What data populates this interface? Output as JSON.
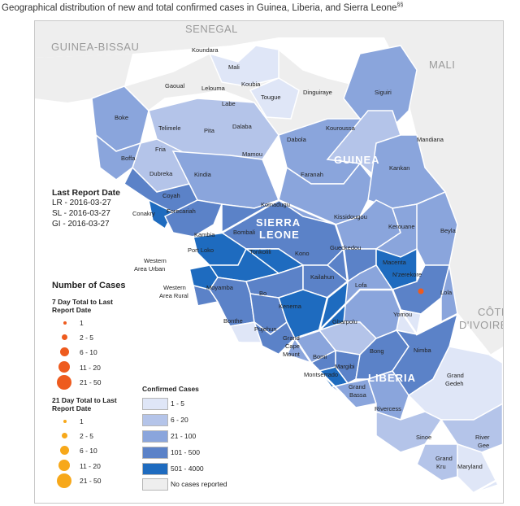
{
  "title": "Geographical distribution of new and total confirmed cases in Guinea, Liberia, and Sierra Leone",
  "title_sup": "§§",
  "colors": {
    "c1_5": "#dfe6f7",
    "c6_20": "#b4c4e9",
    "c21_100": "#8aa5dc",
    "c101_500": "#5b82c8",
    "c501_4000": "#1e6bbf",
    "none": "#eeeeee",
    "dot7": "#ee5b1e",
    "dot21": "#f7a81a"
  },
  "countries": {
    "senegal": "SENEGAL",
    "guinea_bissau": "GUINEA-BISSAU",
    "mali": "MALI",
    "cote_divoire_1": "CÔTE",
    "cote_divoire_2": "D'IVOIRE",
    "guinea": "GUINEA",
    "sierra_leone_1": "SIERRA",
    "sierra_leone_2": "LEONE",
    "liberia": "LIBERIA"
  },
  "districts": {
    "koundara": "Koundara",
    "mali": "Mali",
    "gaoual": "Gaoual",
    "lelouma": "Lelouma",
    "koubia": "Koubia",
    "labe": "Labe",
    "tougue": "Tougue",
    "dinguiraye": "Dinguiraye",
    "siguiri": "Siguiri",
    "boke": "Boke",
    "telimele": "Telimele",
    "pita": "Pita",
    "dalaba": "Dalaba",
    "kouroussa": "Kouroussa",
    "mandiana": "Mandiana",
    "boffa": "Boffa",
    "fria": "Fria",
    "mamou": "Mamou",
    "dabola": "Dabola",
    "dubreka": "Dubreka",
    "kindia": "Kindia",
    "faranah": "Faranah",
    "kankan": "Kankan",
    "coyah": "Coyah",
    "conakry": "Conakry",
    "forecariah": "Forecariah",
    "koinadugu": "Koinadugu",
    "kissidougou": "Kissidougou",
    "kerouane": "Kerouane",
    "beyla": "Beyla",
    "kambia": "Kambia",
    "bombali": "Bombali",
    "port_loko": "Port Loko",
    "tonkolili": "Tonkolili",
    "kono": "Kono",
    "gueckedou": "Gueckedou",
    "macenta": "Macenta",
    "nzerekore": "N'zerekore",
    "western_urban_1": "Western",
    "western_urban_2": "Area Urban",
    "western_rural_1": "Western",
    "western_rural_2": "Area Rural",
    "moyamba": "Moyamba",
    "bo": "Bo",
    "kailahun": "Kailahun",
    "lofa": "Lofa",
    "lola": "Lola",
    "kenema": "Kenema",
    "yomou": "Yomou",
    "bonthe": "Bonthe",
    "pujehun": "Pujehun",
    "gbarpolu": "Gbarpolu",
    "grand_cape_1": "Grand",
    "grand_cape_2": "Cape",
    "grand_cape_3": "Mount",
    "bong": "Bong",
    "nimba": "Nimba",
    "bomi": "Bomi",
    "margibi": "Margibi",
    "montserrado": "Montserrado",
    "grand_bassa_1": "Grand",
    "grand_bassa_2": "Bassa",
    "rivercess": "Rivercess",
    "grand_gedeh_1": "Grand",
    "grand_gedeh_2": "Gedeh",
    "sinoe": "Sinoe",
    "river_gee_1": "River",
    "river_gee_2": "Gee",
    "grand_kru_1": "Grand",
    "grand_kru_2": "Kru",
    "maryland": "Maryland"
  },
  "last_report": {
    "heading": "Last Report Date",
    "lr": "LR - 2016-03-27",
    "sl": "SL - 2016-03-27",
    "gi": "GI - 2016-03-27"
  },
  "cases_legend": {
    "heading": "Number of Cases",
    "seven_day_1": "7 Day Total to Last",
    "seven_day_2": "Report Date",
    "twentyone_day_1": "21 Day Total to Last",
    "twentyone_day_2": "Report Date",
    "bins": [
      "1",
      "2 - 5",
      "6 - 10",
      "11 - 20",
      "21 - 50"
    ]
  },
  "confirmed_legend": {
    "heading": "Confirmed Cases",
    "bins": [
      "1 - 5",
      "6 - 20",
      "21 - 100",
      "101 - 500",
      "501 - 4000",
      "No cases reported"
    ]
  }
}
